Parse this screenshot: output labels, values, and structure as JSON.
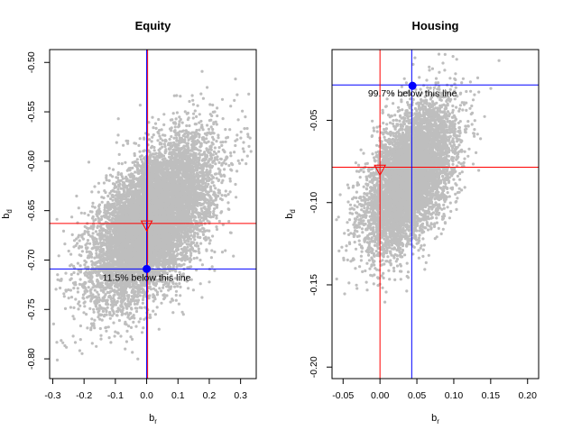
{
  "chart_data": [
    {
      "type": "scatter",
      "title": "Equity",
      "xlabel": {
        "base": "b",
        "sub": "r"
      },
      "ylabel": {
        "base": "b",
        "sub": "d"
      },
      "xlim": [
        -0.31,
        0.35
      ],
      "ylim": [
        -0.82,
        -0.487
      ],
      "xticks": [
        -0.3,
        -0.2,
        -0.1,
        0.0,
        0.1,
        0.2,
        0.3
      ],
      "xtick_labels": [
        "-0.3",
        "-0.2",
        "-0.1",
        "0.0",
        "0.1",
        "0.2",
        "0.3"
      ],
      "yticks": [
        -0.8,
        -0.75,
        -0.7,
        -0.65,
        -0.6,
        -0.55,
        -0.5
      ],
      "ytick_labels": [
        "-0.80",
        "-0.75",
        "-0.70",
        "-0.65",
        "-0.60",
        "-0.55",
        "-0.50"
      ],
      "cloud": {
        "description_color": "#BEBEBE",
        "center": [
          0.02,
          -0.66
        ],
        "sd": [
          0.095,
          0.04
        ],
        "corr": 0.55,
        "n_points": 9000
      },
      "reference": {
        "point": [
          0.0,
          -0.665
        ],
        "marker": "triangle-down",
        "color": "#FF0000"
      },
      "estimate": {
        "point": [
          0.0,
          -0.709
        ],
        "marker": "filled-circle",
        "color": "#0000FF"
      },
      "hline_red": -0.663,
      "hline_blue": -0.709,
      "vline_red": 0.003,
      "vline_blue": 0.0,
      "annotation": "11.5% below this line"
    },
    {
      "type": "scatter",
      "title": "Housing",
      "xlabel": {
        "base": "b",
        "sub": "r"
      },
      "ylabel": {
        "base": "b",
        "sub": "d"
      },
      "xlim": [
        -0.065,
        0.215
      ],
      "ylim": [
        -0.207,
        -0.007
      ],
      "xticks": [
        -0.05,
        0.0,
        0.05,
        0.1,
        0.15,
        0.2
      ],
      "xtick_labels": [
        "-0.05",
        "0.00",
        "0.05",
        "0.10",
        "0.15",
        "0.20"
      ],
      "yticks": [
        -0.2,
        -0.15,
        -0.1,
        -0.05
      ],
      "ytick_labels": [
        "-0.20",
        "-0.15",
        "-0.10",
        "-0.05"
      ],
      "cloud": {
        "description_color": "#BEBEBE",
        "center": [
          0.04,
          -0.085
        ],
        "sd": [
          0.03,
          0.022
        ],
        "corr": 0.5,
        "n_points": 6500
      },
      "reference": {
        "point": [
          0.0,
          -0.08
        ],
        "marker": "triangle-down",
        "color": "#FF0000"
      },
      "estimate": {
        "point": [
          0.044,
          -0.029
        ],
        "marker": "filled-circle",
        "color": "#0000FF"
      },
      "hline_red": -0.0785,
      "hline_blue": -0.0285,
      "vline_red": 0.0,
      "vline_blue": 0.043,
      "annotation": "99.7% below this line"
    }
  ]
}
